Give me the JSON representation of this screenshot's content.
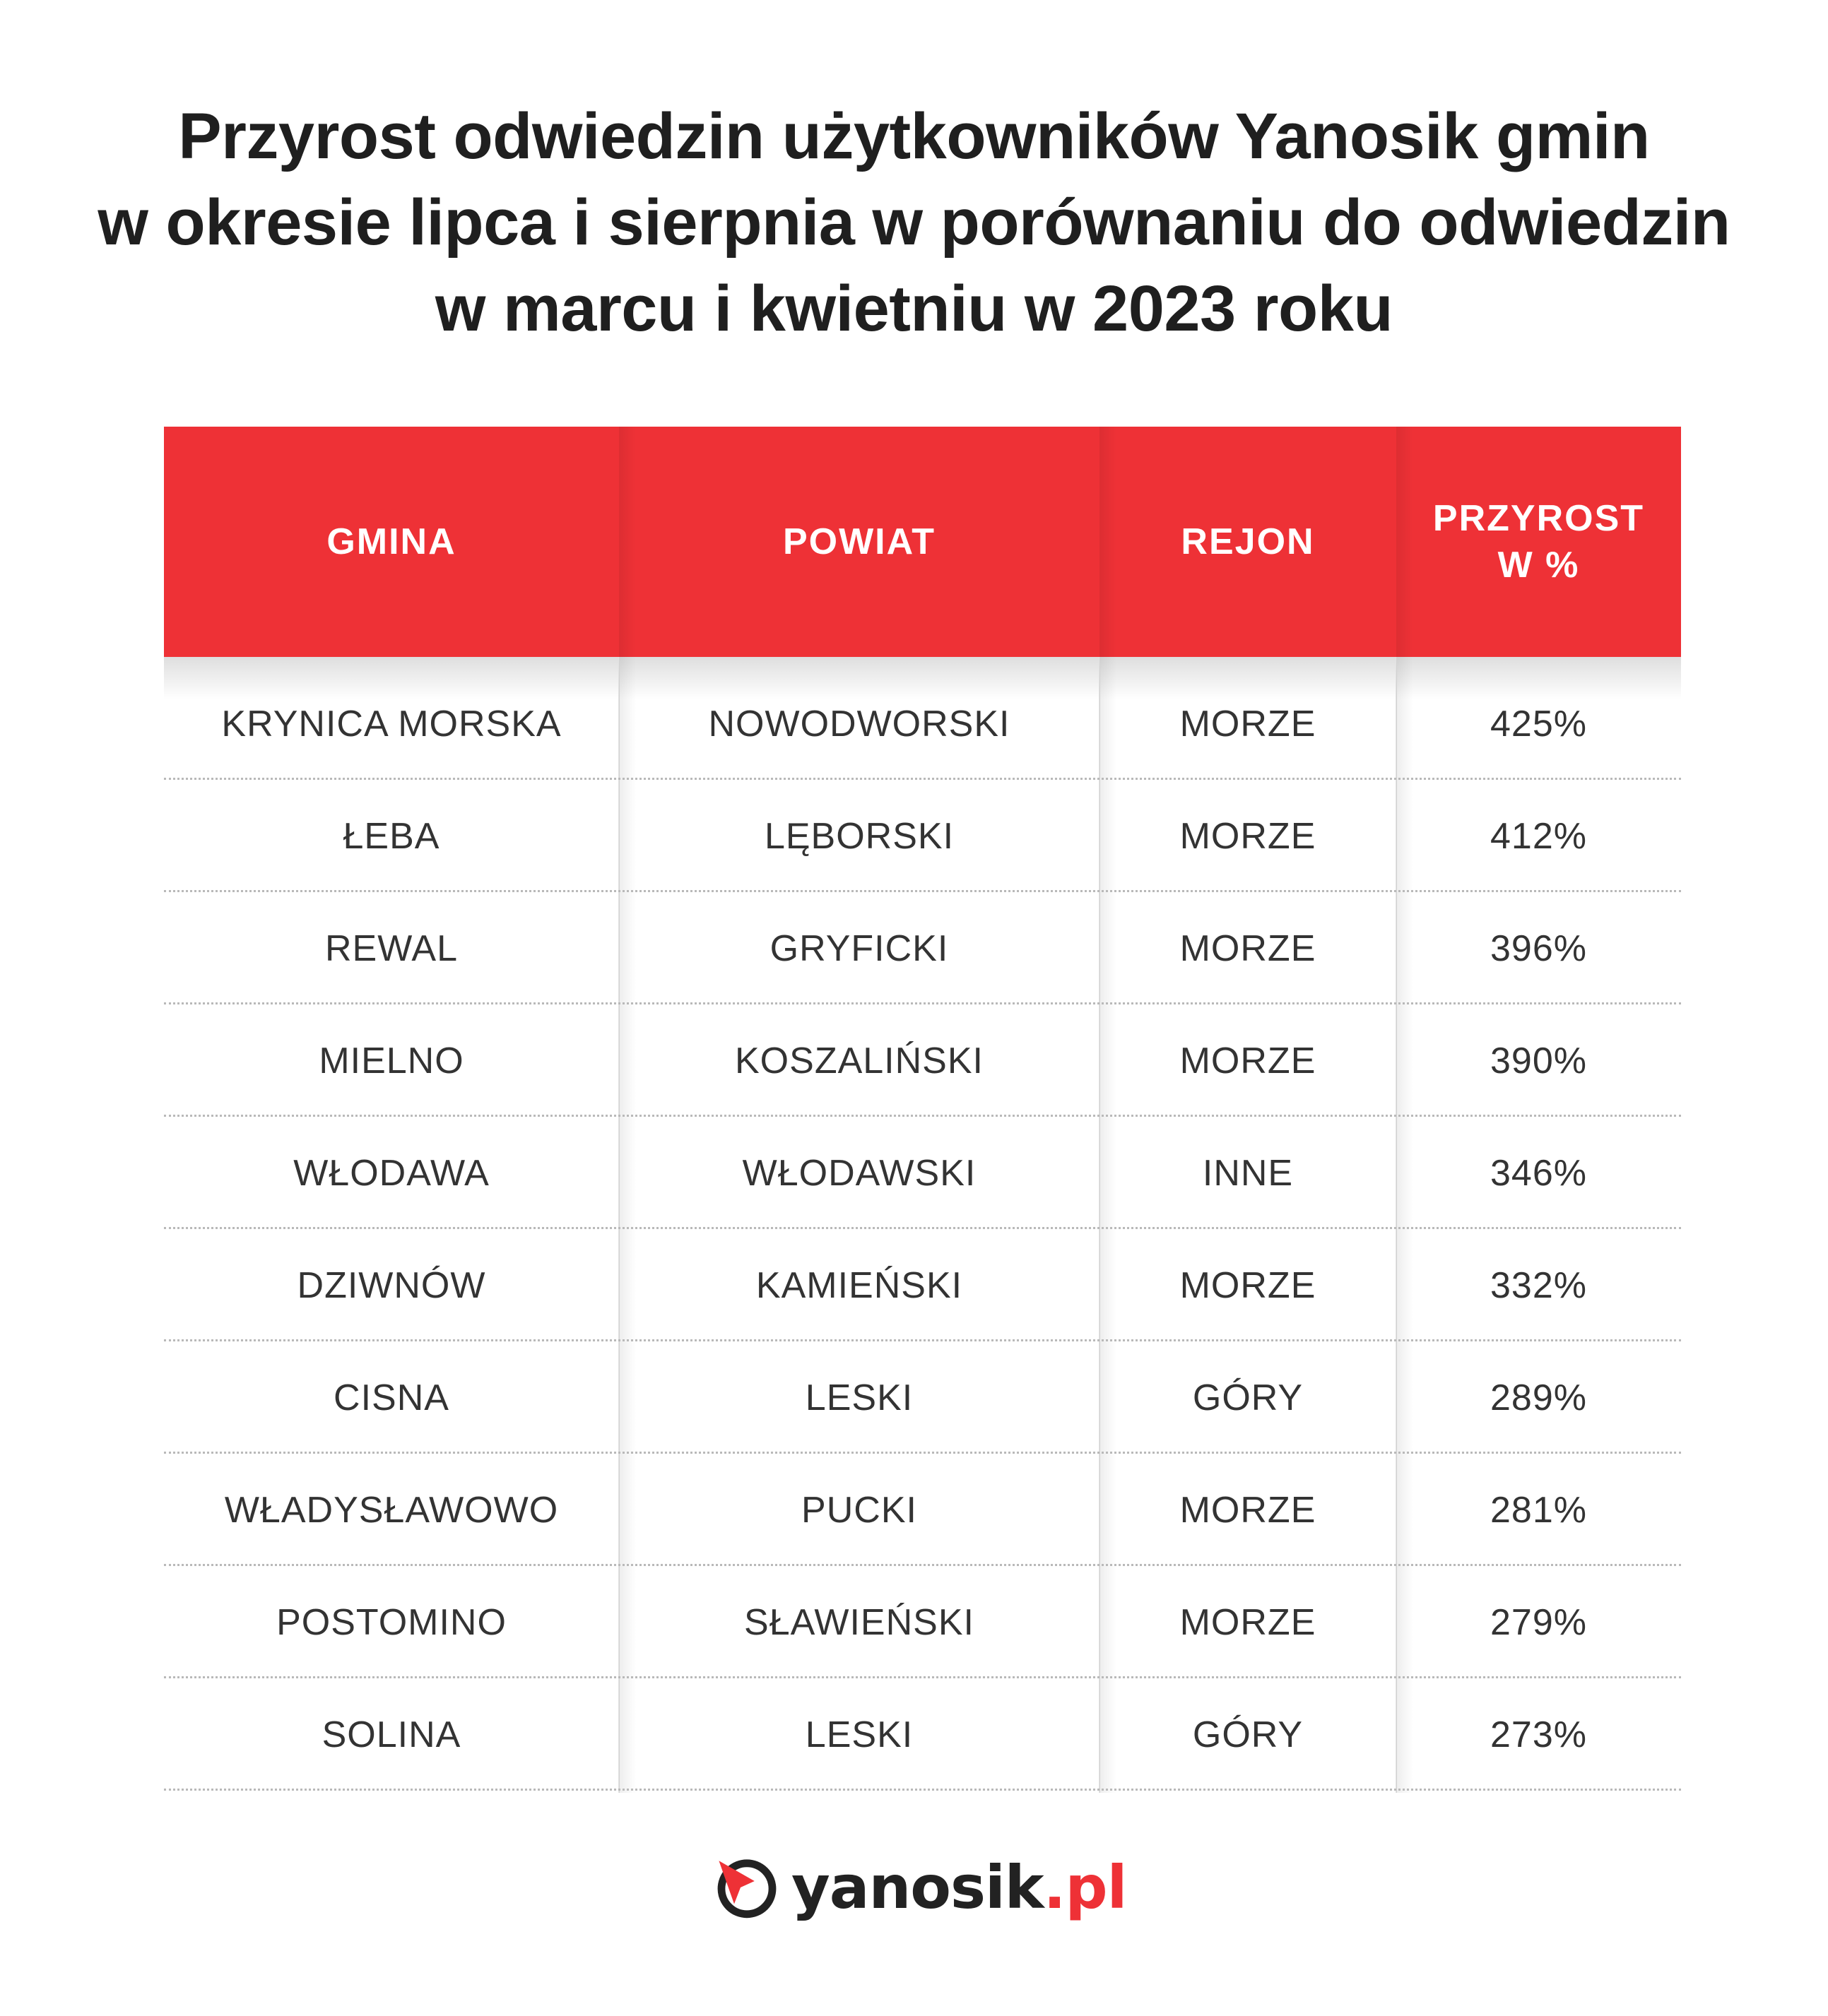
{
  "title": {
    "line1": "Przyrost odwiedzin użytkowników Yanosik gmin",
    "line2": "w okresie lipca i sierpnia w porównaniu do odwiedzin",
    "line3": "w marcu i kwietniu w 2023 roku"
  },
  "table": {
    "headers": {
      "gmina": "GMINA",
      "powiat": "POWIAT",
      "rejon": "REJON",
      "przyrost_line1": "PRZYROST",
      "przyrost_line2": "W %"
    },
    "rows": [
      {
        "gmina": "KRYNICA MORSKA",
        "powiat": "NOWODWORSKI",
        "rejon": "MORZE",
        "przyrost": "425%"
      },
      {
        "gmina": "ŁEBA",
        "powiat": "LĘBORSKI",
        "rejon": "MORZE",
        "przyrost": "412%"
      },
      {
        "gmina": "REWAL",
        "powiat": "GRYFICKI",
        "rejon": "MORZE",
        "przyrost": "396%"
      },
      {
        "gmina": "MIELNO",
        "powiat": "KOSZALIŃSKI",
        "rejon": "MORZE",
        "przyrost": "390%"
      },
      {
        "gmina": "WŁODAWA",
        "powiat": "WŁODAWSKI",
        "rejon": "INNE",
        "przyrost": "346%"
      },
      {
        "gmina": "DZIWNÓW",
        "powiat": "KAMIEŃSKI",
        "rejon": "MORZE",
        "przyrost": "332%"
      },
      {
        "gmina": "CISNA",
        "powiat": "LESKI",
        "rejon": "GÓRY",
        "przyrost": "289%"
      },
      {
        "gmina": "WŁADYSŁAWOWO",
        "powiat": "PUCKI",
        "rejon": "MORZE",
        "przyrost": "281%"
      },
      {
        "gmina": "POSTOMINO",
        "powiat": "SŁAWIEŃSKI",
        "rejon": "MORZE",
        "przyrost": "279%"
      },
      {
        "gmina": "SOLINA",
        "powiat": "LESKI",
        "rejon": "GÓRY",
        "przyrost": "273%"
      }
    ]
  },
  "logo": {
    "name": "yanosik",
    "dot": ".",
    "tld": "pl",
    "icon": "yanosik-logo-icon"
  },
  "colors": {
    "accent": "#ee3136",
    "text": "#333333",
    "title": "#1f1f1f"
  }
}
